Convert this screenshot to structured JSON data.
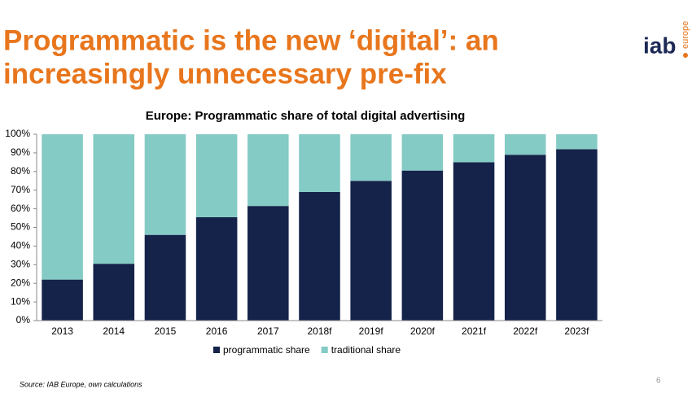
{
  "slide": {
    "title_lines": [
      "Programmatic is the new ‘digital’: an",
      "increasingly unnecessary pre-fix"
    ],
    "logo": {
      "text": "iab",
      "subtext": "europe"
    },
    "source": "Source: IAB Europe, own calculations",
    "page_number": "6"
  },
  "chart_data": {
    "type": "stacked-bar",
    "title": "Europe: Programmatic share of total digital advertising",
    "categories": [
      "2013",
      "2014",
      "2015",
      "2016",
      "2017",
      "2018f",
      "2019f",
      "2020f",
      "2021f",
      "2022f",
      "2023f"
    ],
    "series": [
      {
        "name": "programmatic share",
        "color": "#15234a",
        "values": [
          22,
          30.5,
          46,
          55.5,
          61.5,
          69,
          75,
          80.5,
          85,
          89,
          92
        ]
      },
      {
        "name": "traditional share",
        "color": "#84cbc5",
        "values": [
          78,
          69.5,
          54,
          44.5,
          38.5,
          31,
          25,
          19.5,
          15,
          11,
          8
        ]
      }
    ],
    "ylim": [
      0,
      100
    ],
    "yticks": [
      {
        "value": 0,
        "label": "0%"
      },
      {
        "value": 10,
        "label": "10%"
      },
      {
        "value": 20,
        "label": "20%"
      },
      {
        "value": 30,
        "label": "30%"
      },
      {
        "value": 40,
        "label": "40%"
      },
      {
        "value": 50,
        "label": "50%"
      },
      {
        "value": 60,
        "label": "60%"
      },
      {
        "value": 70,
        "label": "70%"
      },
      {
        "value": 80,
        "label": "80%"
      },
      {
        "value": 90,
        "label": "90%"
      },
      {
        "value": 100,
        "label": "100%"
      }
    ],
    "legend": "bottom"
  }
}
